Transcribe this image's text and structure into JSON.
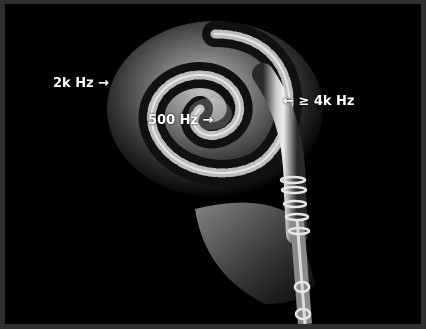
{
  "labels": {
    "low": "2k Hz →",
    "mid": "500 Hz →",
    "high": "← ≥ 4k Hz"
  },
  "colors": {
    "background": "#000000",
    "frame": "#2f2f2f",
    "label_text": "#ffffff"
  }
}
